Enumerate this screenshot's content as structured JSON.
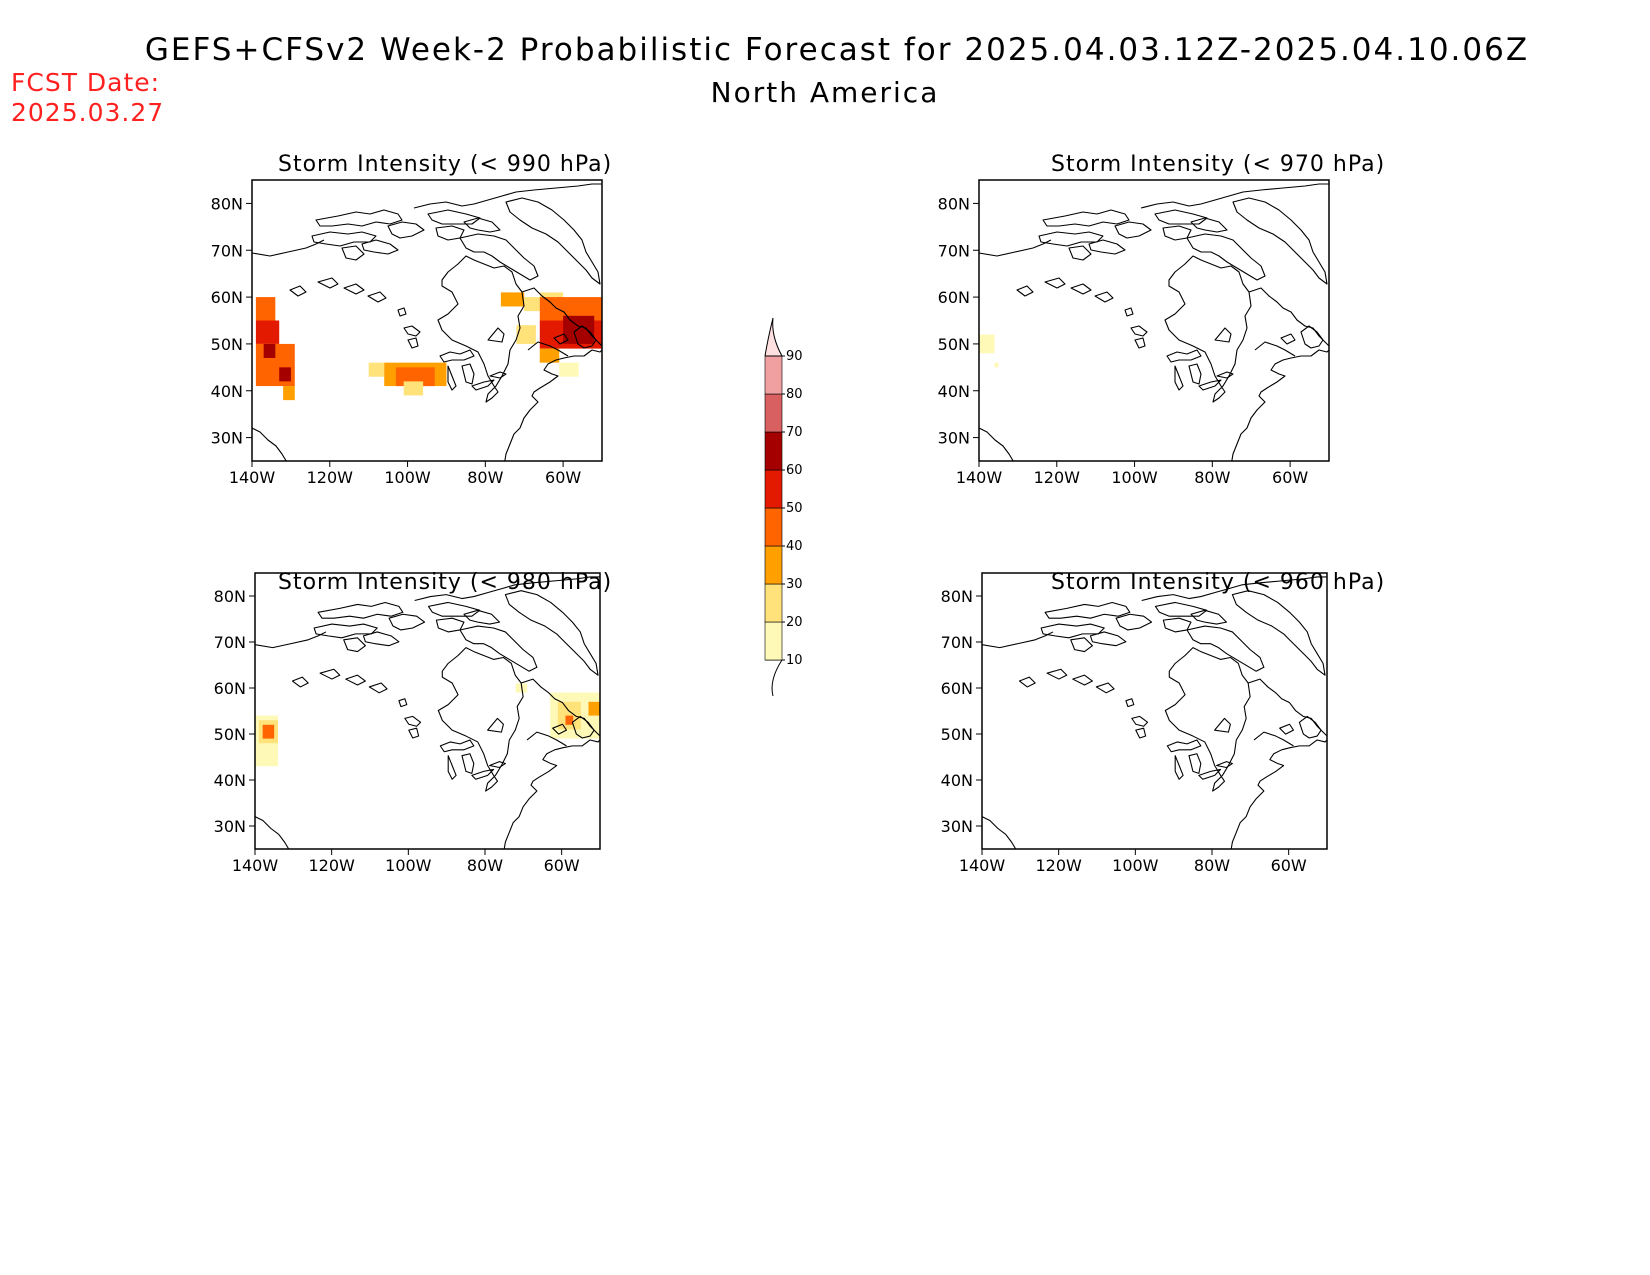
{
  "header": {
    "title": "GEFS+CFSv2 Week-2 Probabilistic Forecast for 2025.04.03.12Z-2025.04.10.06Z",
    "subtitle": "North America",
    "fcst_label": "FCST Date:",
    "fcst_date": "2025.03.27"
  },
  "axes": {
    "lat_ticks": [
      "80N",
      "70N",
      "60N",
      "50N",
      "40N",
      "30N"
    ],
    "lat_values": [
      80,
      70,
      60,
      50,
      40,
      30
    ],
    "lon_ticks": [
      "140W",
      "120W",
      "100W",
      "80W",
      "60W"
    ],
    "lon_values": [
      -140,
      -120,
      -100,
      -80,
      -60
    ],
    "lat_range": [
      25,
      85
    ],
    "lon_range": [
      -140,
      -50
    ]
  },
  "colorbar": {
    "labels": [
      "10",
      "20",
      "30",
      "40",
      "50",
      "60",
      "70",
      "80",
      "90"
    ],
    "colors": [
      "#fff9b8",
      "#ffe27a",
      "#ffa000",
      "#ff6400",
      "#e41a00",
      "#a50000",
      "#d96060",
      "#f0a0a0",
      "#ffe0e0"
    ]
  },
  "panels": [
    {
      "id": "p990",
      "title": "Storm Intensity (< 990 hPa)",
      "cells": [
        {
          "lon": -139,
          "lat": 55,
          "w": 5,
          "h": 5,
          "level": 4
        },
        {
          "lon": -139,
          "lat": 50,
          "w": 6,
          "h": 5,
          "level": 5
        },
        {
          "lon": -139,
          "lat": 44,
          "w": 10,
          "h": 6,
          "level": 4
        },
        {
          "lon": -139,
          "lat": 41,
          "w": 10,
          "h": 3,
          "level": 4
        },
        {
          "lon": -137,
          "lat": 47,
          "w": 3,
          "h": 3,
          "level": 6
        },
        {
          "lon": -133,
          "lat": 42,
          "w": 3,
          "h": 3,
          "level": 6
        },
        {
          "lon": -132,
          "lat": 38,
          "w": 3,
          "h": 3,
          "level": 3
        },
        {
          "lon": -110,
          "lat": 43,
          "w": 4,
          "h": 3,
          "level": 2
        },
        {
          "lon": -106,
          "lat": 41,
          "w": 16,
          "h": 5,
          "level": 3
        },
        {
          "lon": -103,
          "lat": 41,
          "w": 10,
          "h": 4,
          "level": 4
        },
        {
          "lon": -101,
          "lat": 39,
          "w": 5,
          "h": 3,
          "level": 2
        },
        {
          "lon": -76,
          "lat": 58,
          "w": 6,
          "h": 3,
          "level": 3
        },
        {
          "lon": -70,
          "lat": 57,
          "w": 4,
          "h": 3,
          "level": 2
        },
        {
          "lon": -72,
          "lat": 50,
          "w": 5,
          "h": 4,
          "level": 2
        },
        {
          "lon": -66,
          "lat": 58,
          "w": 6,
          "h": 3,
          "level": 2
        },
        {
          "lon": -66,
          "lat": 55,
          "w": 16,
          "h": 5,
          "level": 4
        },
        {
          "lon": -66,
          "lat": 49,
          "w": 16,
          "h": 6,
          "level": 5
        },
        {
          "lon": -60,
          "lat": 50,
          "w": 8,
          "h": 6,
          "level": 6
        },
        {
          "lon": -66,
          "lat": 46,
          "w": 5,
          "h": 3,
          "level": 3
        },
        {
          "lon": -61,
          "lat": 43,
          "w": 5,
          "h": 3,
          "level": 1
        }
      ]
    },
    {
      "id": "p970",
      "title": "Storm Intensity (< 970 hPa)",
      "cells": [
        {
          "lon": -140,
          "lat": 48,
          "w": 4,
          "h": 4,
          "level": 1
        },
        {
          "lon": -136,
          "lat": 45,
          "w": 1,
          "h": 1,
          "level": 1
        }
      ]
    },
    {
      "id": "p980",
      "title": "Storm Intensity (< 980 hPa)",
      "cells": [
        {
          "lon": -140,
          "lat": 43,
          "w": 6,
          "h": 11,
          "level": 1
        },
        {
          "lon": -139,
          "lat": 48,
          "w": 5,
          "h": 5,
          "level": 2
        },
        {
          "lon": -138,
          "lat": 49,
          "w": 3,
          "h": 3,
          "level": 4
        },
        {
          "lon": -72,
          "lat": 59,
          "w": 3,
          "h": 2,
          "level": 1
        },
        {
          "lon": -63,
          "lat": 49,
          "w": 13,
          "h": 10,
          "level": 1
        },
        {
          "lon": -61,
          "lat": 51,
          "w": 6,
          "h": 6,
          "level": 2
        },
        {
          "lon": -59,
          "lat": 52,
          "w": 2,
          "h": 2,
          "level": 4
        },
        {
          "lon": -53,
          "lat": 54,
          "w": 3,
          "h": 3,
          "level": 3
        }
      ]
    },
    {
      "id": "p960",
      "title": "Storm Intensity (< 960 hPa)",
      "cells": []
    }
  ]
}
